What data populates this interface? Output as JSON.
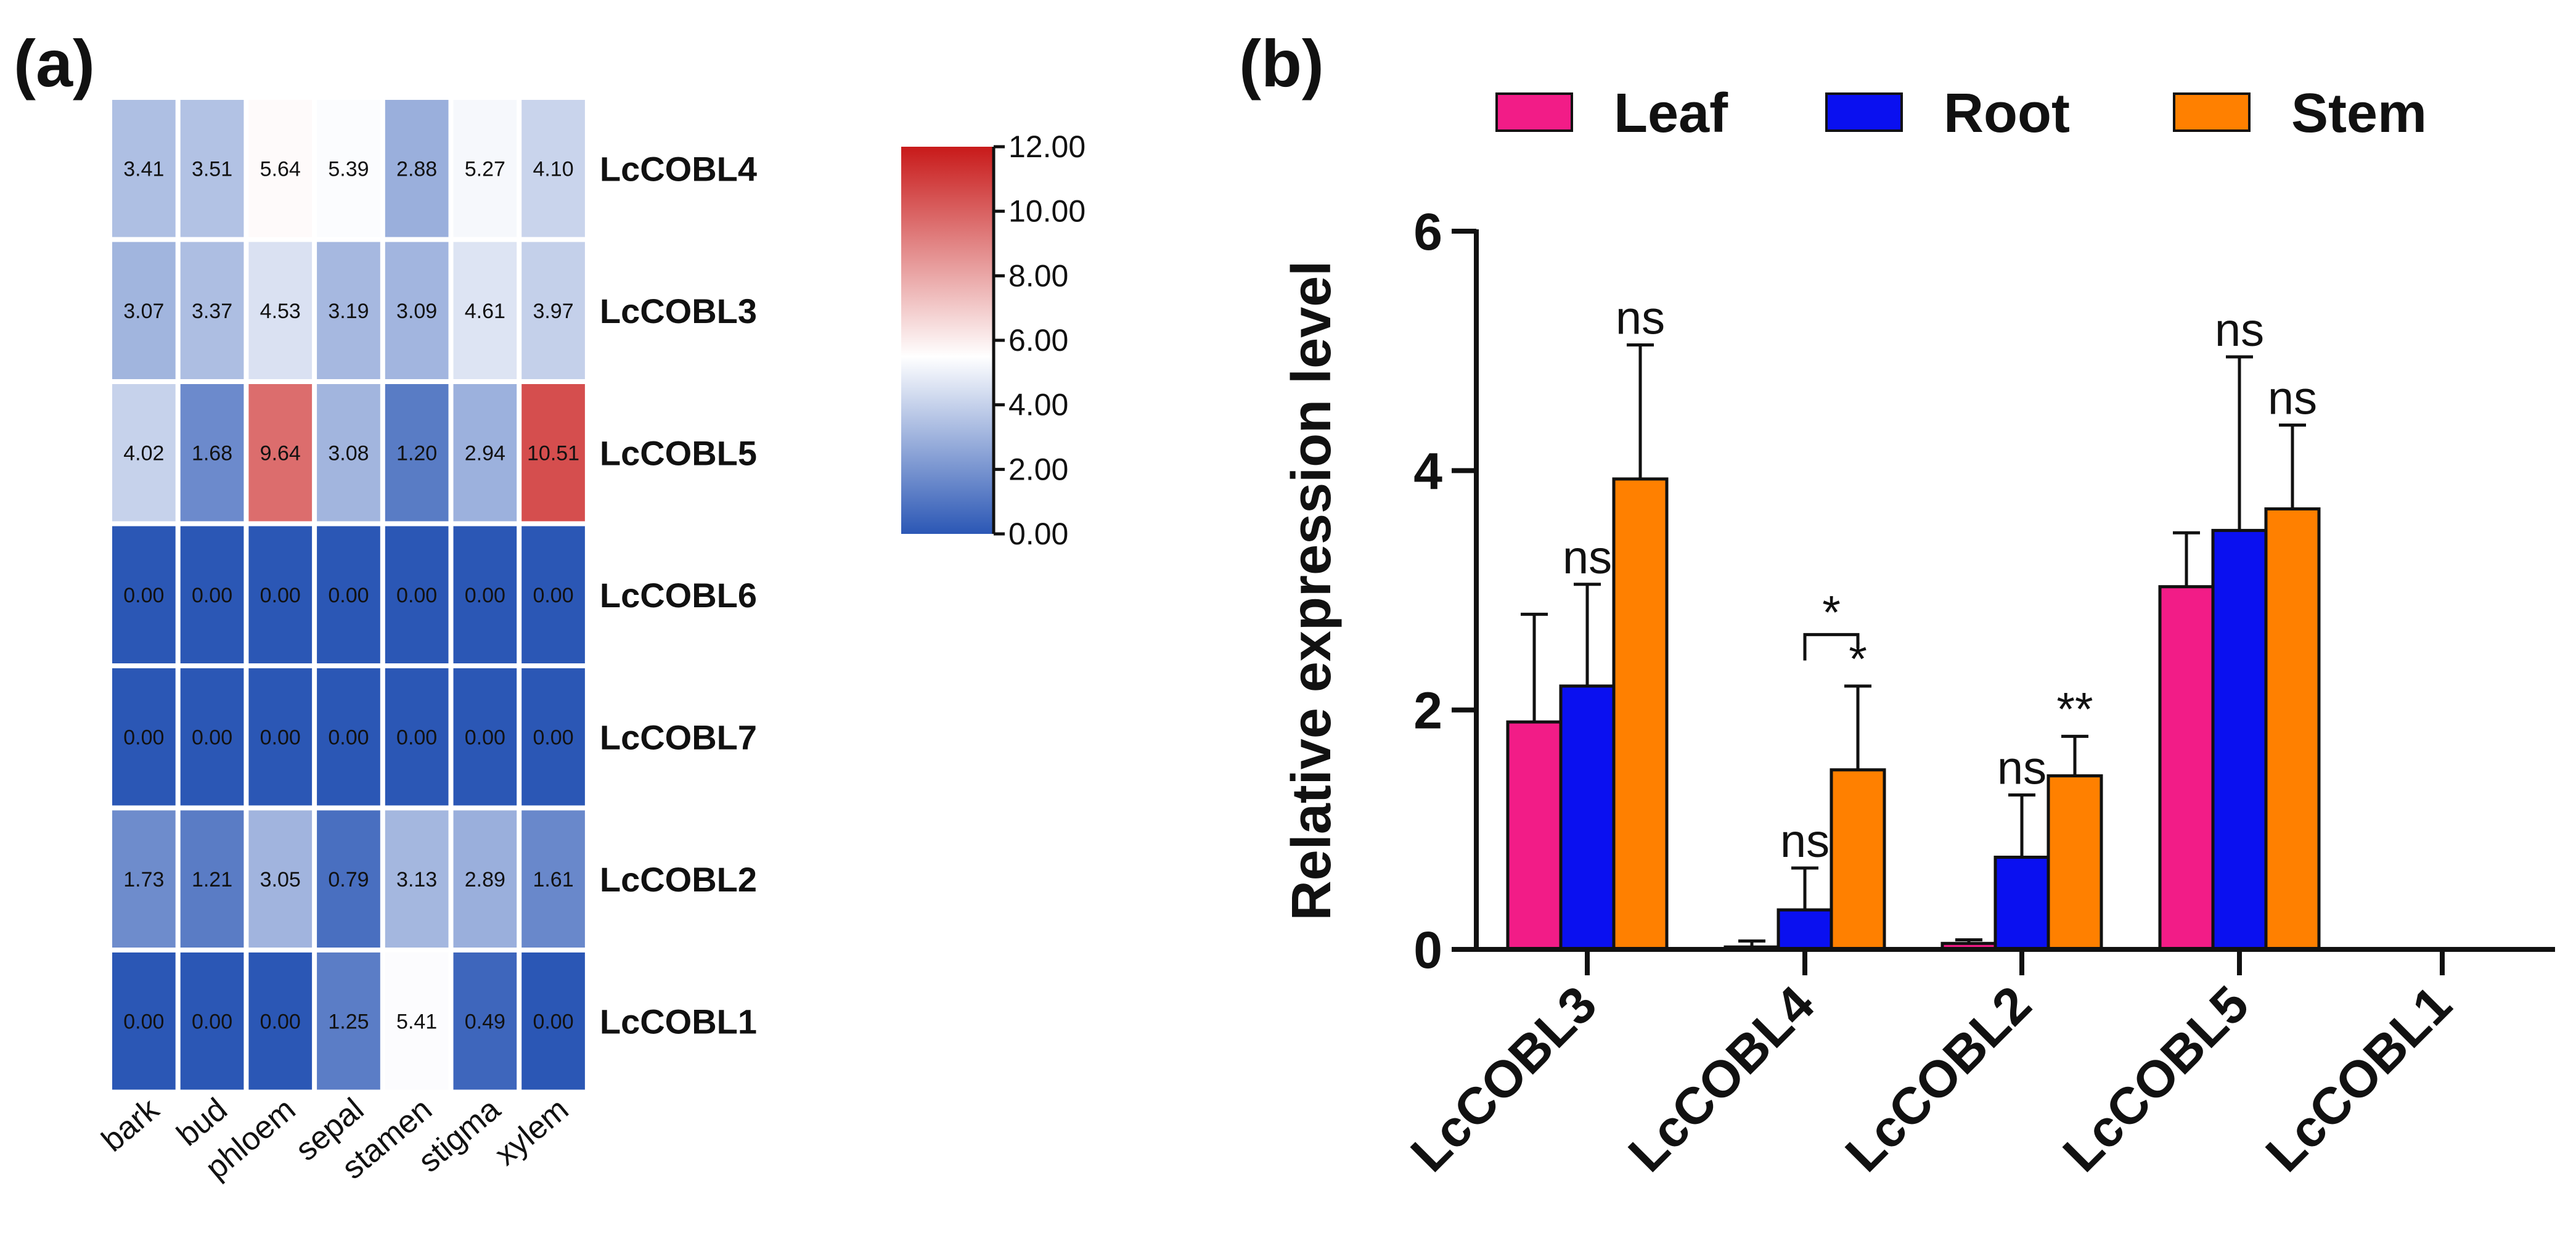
{
  "panel_a_label": "(a)",
  "panel_b_label": "(b)",
  "chart_data": [
    {
      "type": "heatmap",
      "title": "",
      "rows": [
        "LcCOBL4",
        "LcCOBL3",
        "LcCOBL5",
        "LcCOBL6",
        "LcCOBL7",
        "LcCOBL2",
        "LcCOBL1"
      ],
      "columns": [
        "bark",
        "bud",
        "phloem",
        "sepal",
        "stamen",
        "stigma",
        "xylem"
      ],
      "values": [
        [
          3.41,
          3.51,
          5.64,
          5.39,
          2.88,
          5.27,
          4.1
        ],
        [
          3.07,
          3.37,
          4.53,
          3.19,
          3.09,
          4.61,
          3.97
        ],
        [
          4.02,
          1.68,
          9.64,
          3.08,
          1.2,
          2.94,
          10.51
        ],
        [
          0.0,
          0.0,
          0.0,
          0.0,
          0.0,
          0.0,
          0.0
        ],
        [
          0.0,
          0.0,
          0.0,
          0.0,
          0.0,
          0.0,
          0.0
        ],
        [
          1.73,
          1.21,
          3.05,
          0.79,
          3.13,
          2.89,
          1.61
        ],
        [
          0.0,
          0.0,
          0.0,
          1.25,
          5.41,
          0.49,
          0.0
        ]
      ],
      "colorbar": {
        "min": 0,
        "max": 12,
        "ticks": [
          "0.00",
          "2.00",
          "4.00",
          "6.00",
          "8.00",
          "10.00",
          "12.00"
        ],
        "colors": {
          "low": "#2b57b5",
          "mid": "#ffffff",
          "high": "#c81a1a"
        },
        "mid_value": 5.5
      }
    },
    {
      "type": "bar",
      "title": "",
      "ylabel": "Relative expression level",
      "xlabel": "",
      "ylim": [
        0,
        6
      ],
      "yticks": [
        "0",
        "2",
        "4",
        "6"
      ],
      "categories": [
        "LcCOBL3",
        "LcCOBL4",
        "LcCOBL2",
        "LcCOBL5",
        "LcCOBL1"
      ],
      "series": [
        {
          "name": "Leaf",
          "color": "#f21c87",
          "values": [
            1.9,
            0.02,
            0.05,
            3.03,
            0.0
          ],
          "errors": [
            0.9,
            0.05,
            0.03,
            0.45,
            0.0
          ]
        },
        {
          "name": "Root",
          "color": "#0a10f0",
          "values": [
            2.2,
            0.33,
            0.77,
            3.5,
            0.0
          ],
          "errors": [
            0.85,
            0.35,
            0.52,
            1.45,
            0.0
          ]
        },
        {
          "name": "Stem",
          "color": "#ff8000",
          "values": [
            3.93,
            1.5,
            1.45,
            3.68,
            0.0
          ],
          "errors": [
            1.12,
            0.7,
            0.33,
            0.7,
            0.0
          ]
        }
      ],
      "annotations": [
        {
          "category": "LcCOBL3",
          "series": "Root",
          "text": "ns"
        },
        {
          "category": "LcCOBL3",
          "series": "Stem",
          "text": "ns"
        },
        {
          "category": "LcCOBL4",
          "series": "Root",
          "text": "ns"
        },
        {
          "category": "LcCOBL4",
          "series": "Stem",
          "text": "*"
        },
        {
          "category": "LcCOBL4",
          "bracket": [
            "Root",
            "Stem"
          ],
          "text": "*"
        },
        {
          "category": "LcCOBL2",
          "series": "Root",
          "text": "ns"
        },
        {
          "category": "LcCOBL2",
          "series": "Stem",
          "text": "**"
        },
        {
          "category": "LcCOBL5",
          "series": "Root",
          "text": "ns"
        },
        {
          "category": "LcCOBL5",
          "series": "Stem",
          "text": "ns"
        }
      ],
      "legend": "top"
    }
  ]
}
